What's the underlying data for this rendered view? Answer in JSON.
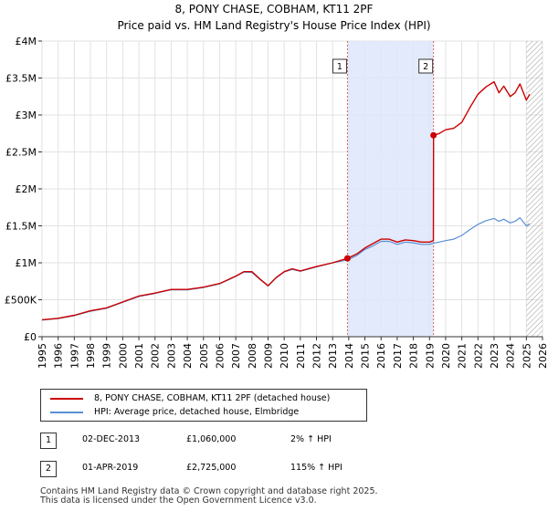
{
  "chart_data": {
    "type": "line",
    "title": "8, PONY CHASE, COBHAM, KT11 2PF",
    "subtitle": "Price paid vs. HM Land Registry's House Price Index (HPI)",
    "xlim": [
      1995,
      2026
    ],
    "ylim": [
      0,
      4000000
    ],
    "x_ticks": [
      1995,
      1996,
      1997,
      1998,
      1999,
      2000,
      2001,
      2002,
      2003,
      2004,
      2005,
      2006,
      2007,
      2008,
      2009,
      2010,
      2011,
      2012,
      2013,
      2014,
      2015,
      2016,
      2017,
      2018,
      2019,
      2020,
      2021,
      2022,
      2023,
      2024,
      2025,
      2026
    ],
    "y_ticks": [
      {
        "value": 0,
        "label": "£0"
      },
      {
        "value": 500000,
        "label": "£500K"
      },
      {
        "value": 1000000,
        "label": "£1M"
      },
      {
        "value": 1500000,
        "label": "£1.5M"
      },
      {
        "value": 2000000,
        "label": "£2M"
      },
      {
        "value": 2500000,
        "label": "£2.5M"
      },
      {
        "value": 3000000,
        "label": "£3M"
      },
      {
        "value": 3500000,
        "label": "£3.5M"
      },
      {
        "value": 4000000,
        "label": "£4M"
      }
    ],
    "grid": true,
    "colors": {
      "property": "#cc0000",
      "hpi": "#5b8fd4",
      "highlight": "#dde6fa",
      "marker": "#cc0000"
    },
    "highlight_range": [
      2013.92,
      2019.25
    ],
    "future_hatch_from": 2025.0,
    "series": [
      {
        "name": "8, PONY CHASE, COBHAM, KT11 2PF (detached house)",
        "key": "property",
        "x": [
          1995.0,
          1996.0,
          1997.0,
          1998.0,
          1999.0,
          2000.0,
          2001.0,
          2002.0,
          2003.0,
          2004.0,
          2005.0,
          2006.0,
          2007.0,
          2007.5,
          2008.0,
          2008.5,
          2009.0,
          2009.5,
          2010.0,
          2010.5,
          2011.0,
          2012.0,
          2013.0,
          2013.92,
          2014.5,
          2015.0,
          2015.5,
          2016.0,
          2016.5,
          2017.0,
          2017.5,
          2018.0,
          2018.5,
          2019.0,
          2019.24,
          2019.25,
          2019.6,
          2020.0,
          2020.5,
          2021.0,
          2021.5,
          2022.0,
          2022.5,
          2023.0,
          2023.3,
          2023.6,
          2024.0,
          2024.3,
          2024.6,
          2025.0,
          2025.2
        ],
        "values": [
          230000,
          250000,
          290000,
          350000,
          390000,
          470000,
          550000,
          590000,
          640000,
          640000,
          670000,
          720000,
          820000,
          880000,
          880000,
          780000,
          690000,
          800000,
          880000,
          920000,
          890000,
          950000,
          1000000,
          1060000,
          1120000,
          1200000,
          1260000,
          1320000,
          1320000,
          1280000,
          1310000,
          1300000,
          1280000,
          1280000,
          1300000,
          2725000,
          2750000,
          2800000,
          2820000,
          2900000,
          3100000,
          3280000,
          3380000,
          3450000,
          3300000,
          3390000,
          3250000,
          3300000,
          3420000,
          3200000,
          3280000
        ]
      },
      {
        "name": "HPI: Average price, detached house, Elmbridge",
        "key": "hpi",
        "x": [
          1995.0,
          1996.0,
          1997.0,
          1998.0,
          1999.0,
          2000.0,
          2001.0,
          2002.0,
          2003.0,
          2004.0,
          2005.0,
          2006.0,
          2007.0,
          2007.5,
          2008.0,
          2008.5,
          2009.0,
          2009.5,
          2010.0,
          2010.5,
          2011.0,
          2012.0,
          2013.0,
          2013.92,
          2014.5,
          2015.0,
          2015.5,
          2016.0,
          2016.5,
          2017.0,
          2017.5,
          2018.0,
          2018.5,
          2019.0,
          2019.25,
          2019.6,
          2020.0,
          2020.5,
          2021.0,
          2021.5,
          2022.0,
          2022.5,
          2023.0,
          2023.3,
          2023.6,
          2024.0,
          2024.3,
          2024.6,
          2025.0,
          2025.2
        ],
        "values": [
          225000,
          245000,
          285000,
          345000,
          385000,
          465000,
          545000,
          585000,
          635000,
          635000,
          665000,
          715000,
          815000,
          875000,
          870000,
          775000,
          685000,
          795000,
          875000,
          910000,
          885000,
          945000,
          1000000,
          1040000,
          1100000,
          1180000,
          1230000,
          1290000,
          1290000,
          1250000,
          1280000,
          1270000,
          1250000,
          1250000,
          1265000,
          1280000,
          1300000,
          1320000,
          1370000,
          1450000,
          1520000,
          1570000,
          1600000,
          1560000,
          1590000,
          1540000,
          1560000,
          1610000,
          1500000,
          1530000
        ]
      }
    ],
    "markers": [
      {
        "label": "1",
        "x": 2013.92,
        "value": 1060000
      },
      {
        "label": "2",
        "x": 2019.25,
        "value": 2725000
      }
    ]
  },
  "legend": {
    "property": "8, PONY CHASE, COBHAM, KT11 2PF (detached house)",
    "hpi": "HPI: Average price, detached house, Elmbridge"
  },
  "transactions": [
    {
      "label": "1",
      "date": "02-DEC-2013",
      "price": "£1,060,000",
      "hpi": "2% ↑ HPI"
    },
    {
      "label": "2",
      "date": "01-APR-2019",
      "price": "£2,725,000",
      "hpi": "115% ↑ HPI"
    }
  ],
  "footer": {
    "line1": "Contains HM Land Registry data © Crown copyright and database right 2025.",
    "line2": "This data is licensed under the Open Government Licence v3.0."
  }
}
